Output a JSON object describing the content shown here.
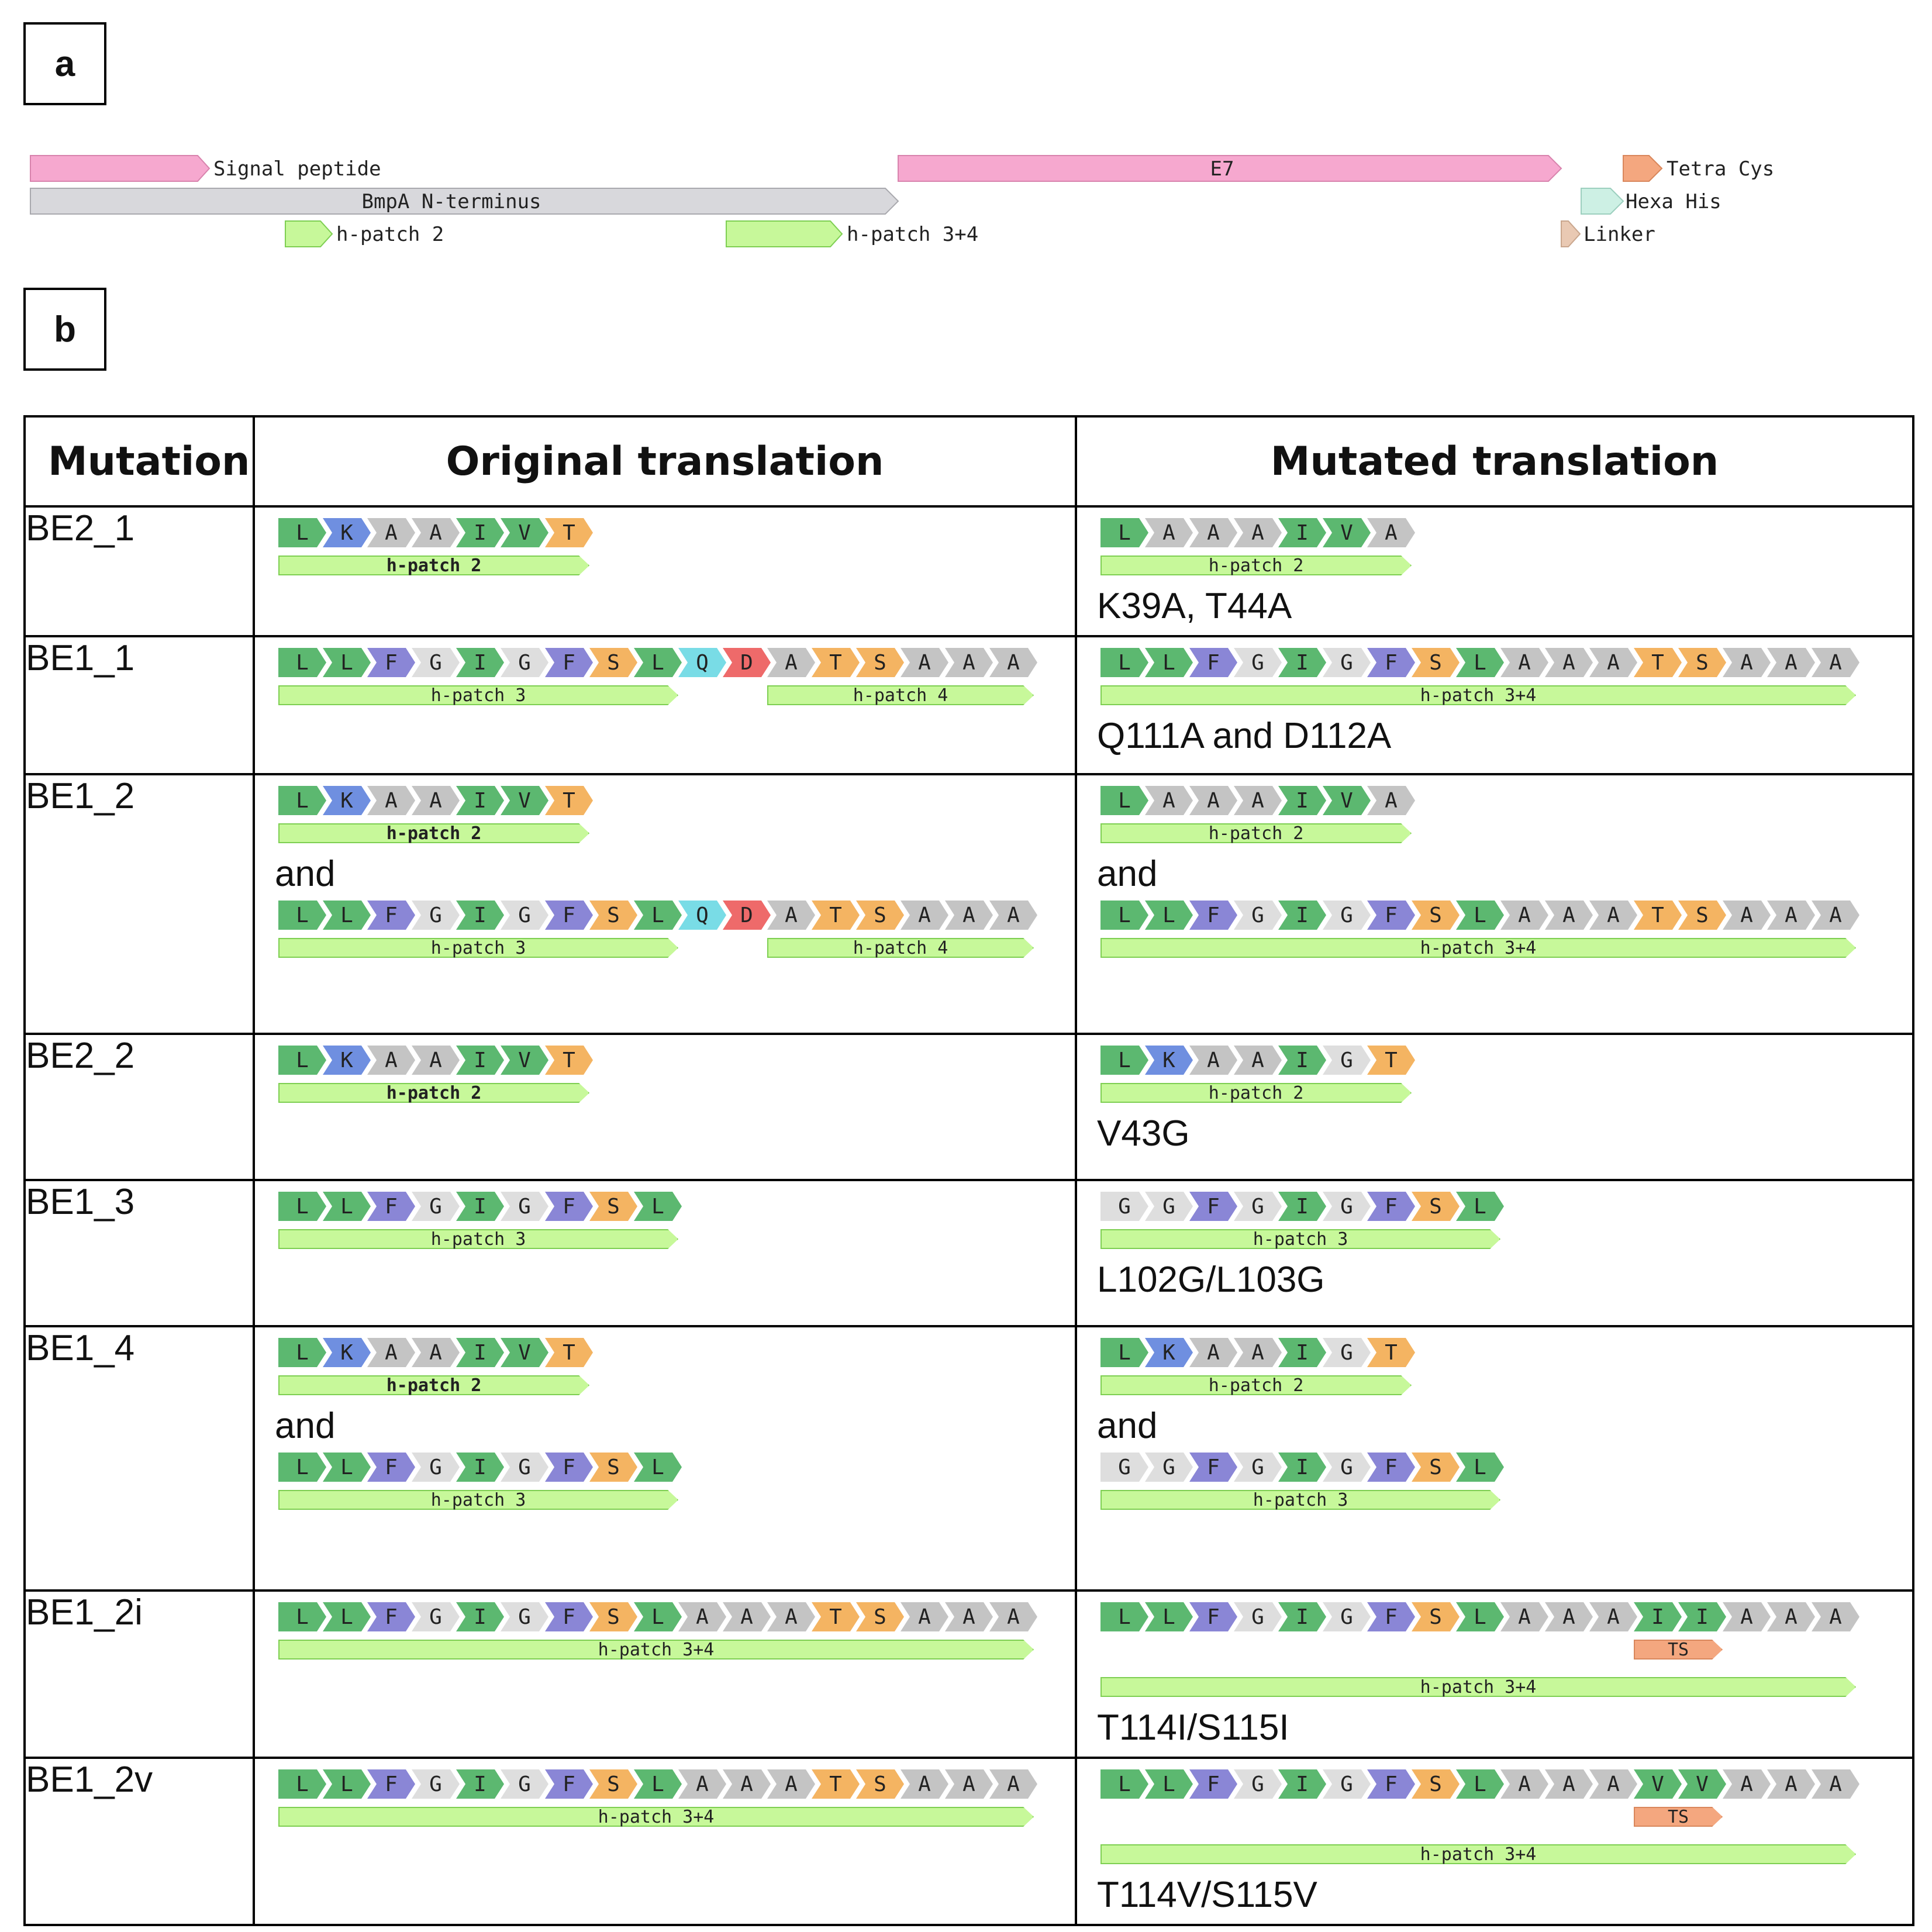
{
  "panels": {
    "a": "a",
    "b": "b"
  },
  "colors": {
    "L": "#5cb870",
    "I": "#5cb870",
    "V": "#5cb870",
    "K": "#6f8fe0",
    "F": "#8a86d6",
    "A": "#c4c4c4",
    "G": "#dedede",
    "T": "#f4b462",
    "S": "#f4b462",
    "Q": "#79dce6",
    "D": "#ee6a6a",
    "hpatch": "#c7f89a",
    "ts": "#f4a77f"
  },
  "map": {
    "features": [
      {
        "label": "Signal peptide",
        "color": "pink"
      },
      {
        "label": "BmpA N-terminus",
        "color": "gray"
      },
      {
        "label": "h-patch 2",
        "color": "green"
      },
      {
        "label": "h-patch 3+4",
        "color": "green"
      },
      {
        "label": "E7",
        "color": "pink"
      },
      {
        "label": "Tetra Cys",
        "color": "orange"
      },
      {
        "label": "Hexa His",
        "color": "teal"
      },
      {
        "label": "Linker",
        "color": "tan"
      }
    ]
  },
  "table": {
    "headers": [
      "Mutation",
      "Original translation",
      "Mutated translation"
    ],
    "rows": [
      {
        "name": "BE2_1",
        "original": [
          {
            "seq": "LKAAIVT",
            "ann": [
              {
                "label": "h-patch 2",
                "start": 0,
                "end": 7,
                "bold": true
              }
            ]
          }
        ],
        "mutated": [
          {
            "seq": "LAAAIVA",
            "ann": [
              {
                "label": "h-patch 2",
                "start": 0,
                "end": 7
              }
            ]
          },
          {
            "text": "K39A, T44A"
          }
        ]
      },
      {
        "name": "BE1_1",
        "original": [
          {
            "seq": "LLFGIGFSLQDATSAAA",
            "ann": [
              {
                "label": "h-patch 3",
                "start": 0,
                "end": 9
              },
              {
                "label": "h-patch 4",
                "start": 11,
                "end": 17
              }
            ]
          }
        ],
        "mutated": [
          {
            "seq": "LLFGIGFSLAAATSAAA",
            "ann": [
              {
                "label": "h-patch 3+4",
                "start": 0,
                "end": 17
              }
            ]
          },
          {
            "text": "Q111A and D112A"
          }
        ]
      },
      {
        "name": "BE1_2",
        "original": [
          {
            "seq": "LKAAIVT",
            "ann": [
              {
                "label": "h-patch 2",
                "start": 0,
                "end": 7,
                "bold": true
              }
            ]
          },
          {
            "text": "and"
          },
          {
            "seq": "LLFGIGFSLQDATSAAA",
            "ann": [
              {
                "label": "h-patch 3",
                "start": 0,
                "end": 9
              },
              {
                "label": "h-patch 4",
                "start": 11,
                "end": 17
              }
            ]
          }
        ],
        "mutated": [
          {
            "seq": "LAAAIVA",
            "ann": [
              {
                "label": "h-patch 2",
                "start": 0,
                "end": 7
              }
            ]
          },
          {
            "text": "and"
          },
          {
            "seq": "LLFGIGFSLAAATSAAA",
            "ann": [
              {
                "label": "h-patch 3+4",
                "start": 0,
                "end": 17
              }
            ]
          }
        ]
      },
      {
        "name": "BE2_2",
        "original": [
          {
            "seq": "LKAAIVT",
            "ann": [
              {
                "label": "h-patch 2",
                "start": 0,
                "end": 7,
                "bold": true
              }
            ]
          }
        ],
        "mutated": [
          {
            "seq": "LKAAIGT",
            "ann": [
              {
                "label": "h-patch 2",
                "start": 0,
                "end": 7
              }
            ]
          },
          {
            "text": "V43G"
          }
        ]
      },
      {
        "name": "BE1_3",
        "original": [
          {
            "seq": "LLFGIGFSL",
            "ann": [
              {
                "label": "h-patch 3",
                "start": 0,
                "end": 9
              }
            ]
          }
        ],
        "mutated": [
          {
            "seq": "GGFGIGFSL",
            "ann": [
              {
                "label": "h-patch 3",
                "start": 0,
                "end": 9
              }
            ]
          },
          {
            "text": "L102G/L103G"
          }
        ]
      },
      {
        "name": "BE1_4",
        "original": [
          {
            "seq": "LKAAIVT",
            "ann": [
              {
                "label": "h-patch 2",
                "start": 0,
                "end": 7,
                "bold": true
              }
            ]
          },
          {
            "text": "and"
          },
          {
            "seq": "LLFGIGFSL",
            "ann": [
              {
                "label": "h-patch 3",
                "start": 0,
                "end": 9
              }
            ]
          }
        ],
        "mutated": [
          {
            "seq": "LKAAIGT",
            "ann": [
              {
                "label": "h-patch 2",
                "start": 0,
                "end": 7
              }
            ]
          },
          {
            "text": "and"
          },
          {
            "seq": "GGFGIGFSL",
            "ann": [
              {
                "label": "h-patch 3",
                "start": 0,
                "end": 9
              }
            ]
          }
        ]
      },
      {
        "name": "BE1_2i",
        "original": [
          {
            "seq": "LLFGIGFSLAAATSAAA",
            "ann": [
              {
                "label": "h-patch 3+4",
                "start": 0,
                "end": 17
              }
            ]
          }
        ],
        "mutated": [
          {
            "seq": "LLFGIGFSLAAAIIAAA",
            "ann": [
              {
                "label": "TS",
                "start": 12,
                "end": 14,
                "ts": true
              }
            ]
          },
          {
            "seq": "",
            "ann": [
              {
                "label": "h-patch 3+4",
                "start": 0,
                "end": 17
              }
            ]
          },
          {
            "text": "T114I/S115I"
          }
        ]
      },
      {
        "name": "BE1_2v",
        "original": [
          {
            "seq": "LLFGIGFSLAAATSAAA",
            "ann": [
              {
                "label": "h-patch 3+4",
                "start": 0,
                "end": 17
              }
            ]
          }
        ],
        "mutated": [
          {
            "seq": "LLFGIGFSLAAAVVAAA",
            "ann": [
              {
                "label": "TS",
                "start": 12,
                "end": 14,
                "ts": true
              }
            ]
          },
          {
            "seq": "",
            "ann": [
              {
                "label": "h-patch 3+4",
                "start": 0,
                "end": 17
              }
            ]
          },
          {
            "text": "T114V/S115V"
          }
        ]
      }
    ]
  }
}
